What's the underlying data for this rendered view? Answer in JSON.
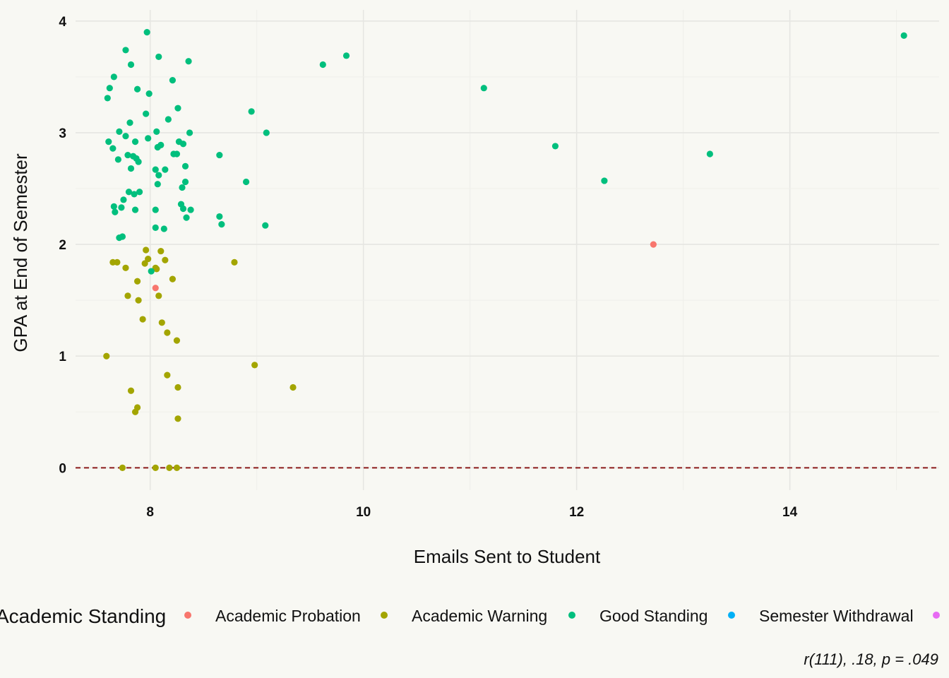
{
  "chart_data": {
    "type": "scatter",
    "xlabel": "Emails Sent to Student",
    "ylabel": "GPA at End of Semester",
    "xlim": [
      7.3,
      15.4
    ],
    "ylim": [
      -0.2,
      4.1
    ],
    "x_ticks": [
      8,
      10,
      12,
      14
    ],
    "y_ticks": [
      0,
      1,
      2,
      3,
      4
    ],
    "grid": true,
    "reference_line": {
      "y": 0,
      "style": "dashed",
      "color": "#8b1a1a"
    },
    "legend": {
      "title": "Academic Standing",
      "placement": "bottom",
      "entries": [
        {
          "name": "Academic Probation",
          "color": "#f8766d"
        },
        {
          "name": "Academic Warning",
          "color": "#a3a500"
        },
        {
          "name": "Good Standing",
          "color": "#00bf7d"
        },
        {
          "name": "Semester Withdrawal",
          "color": "#00b0f6"
        },
        {
          "name": "",
          "color": "#e76bf3"
        }
      ]
    },
    "caption": "r(111), .18, p = .049",
    "series": [
      {
        "name": "Academic Probation",
        "color": "#f8766d",
        "points": [
          [
            8.05,
            1.61
          ],
          [
            12.72,
            2.0
          ]
        ]
      },
      {
        "name": "Academic Warning",
        "color": "#a3a500",
        "points": [
          [
            7.59,
            1.0
          ],
          [
            7.65,
            1.84
          ],
          [
            7.69,
            1.84
          ],
          [
            7.74,
            0.0
          ],
          [
            7.77,
            1.79
          ],
          [
            7.79,
            1.54
          ],
          [
            7.82,
            0.69
          ],
          [
            7.86,
            0.5
          ],
          [
            7.88,
            0.54
          ],
          [
            7.88,
            1.67
          ],
          [
            7.89,
            1.5
          ],
          [
            7.93,
            1.33
          ],
          [
            7.95,
            1.83
          ],
          [
            7.96,
            1.95
          ],
          [
            7.98,
            1.87
          ],
          [
            8.05,
            1.79
          ],
          [
            8.05,
            0.0
          ],
          [
            8.06,
            1.78
          ],
          [
            8.08,
            1.54
          ],
          [
            8.1,
            1.94
          ],
          [
            8.11,
            1.3
          ],
          [
            8.14,
            1.86
          ],
          [
            8.16,
            1.21
          ],
          [
            8.16,
            0.83
          ],
          [
            8.18,
            0.0
          ],
          [
            8.21,
            1.69
          ],
          [
            8.25,
            1.14
          ],
          [
            8.25,
            0.0
          ],
          [
            8.26,
            0.72
          ],
          [
            8.26,
            0.44
          ],
          [
            8.79,
            1.84
          ],
          [
            8.98,
            0.92
          ],
          [
            9.34,
            0.72
          ]
        ]
      },
      {
        "name": "Good Standing",
        "color": "#00bf7d",
        "points": [
          [
            7.6,
            3.31
          ],
          [
            7.62,
            3.4
          ],
          [
            7.61,
            2.92
          ],
          [
            7.65,
            2.86
          ],
          [
            7.66,
            2.34
          ],
          [
            7.67,
            2.29
          ],
          [
            7.66,
            3.5
          ],
          [
            7.7,
            2.76
          ],
          [
            7.71,
            3.01
          ],
          [
            7.71,
            2.06
          ],
          [
            7.73,
            2.33
          ],
          [
            7.74,
            2.07
          ],
          [
            7.75,
            2.4
          ],
          [
            7.77,
            2.97
          ],
          [
            7.77,
            3.74
          ],
          [
            7.79,
            2.8
          ],
          [
            7.8,
            2.47
          ],
          [
            7.81,
            3.09
          ],
          [
            7.82,
            2.68
          ],
          [
            7.82,
            3.61
          ],
          [
            7.84,
            2.79
          ],
          [
            7.85,
            2.45
          ],
          [
            7.86,
            2.92
          ],
          [
            7.86,
            2.31
          ],
          [
            7.87,
            2.77
          ],
          [
            7.88,
            3.39
          ],
          [
            7.89,
            2.74
          ],
          [
            7.9,
            2.47
          ],
          [
            7.96,
            3.17
          ],
          [
            7.97,
            3.9
          ],
          [
            7.98,
            2.95
          ],
          [
            7.99,
            3.35
          ],
          [
            8.01,
            1.76
          ],
          [
            8.05,
            2.15
          ],
          [
            8.05,
            2.31
          ],
          [
            8.05,
            2.67
          ],
          [
            8.06,
            3.01
          ],
          [
            8.07,
            2.87
          ],
          [
            8.07,
            2.54
          ],
          [
            8.08,
            3.68
          ],
          [
            8.08,
            2.62
          ],
          [
            8.1,
            2.89
          ],
          [
            8.13,
            2.14
          ],
          [
            8.14,
            2.67
          ],
          [
            8.17,
            3.12
          ],
          [
            8.21,
            3.47
          ],
          [
            8.22,
            2.81
          ],
          [
            8.25,
            2.81
          ],
          [
            8.26,
            3.22
          ],
          [
            8.27,
            2.92
          ],
          [
            8.29,
            2.36
          ],
          [
            8.3,
            2.51
          ],
          [
            8.31,
            2.32
          ],
          [
            8.31,
            2.9
          ],
          [
            8.33,
            2.7
          ],
          [
            8.33,
            2.56
          ],
          [
            8.34,
            2.24
          ],
          [
            8.36,
            3.64
          ],
          [
            8.37,
            3.0
          ],
          [
            8.38,
            2.31
          ],
          [
            8.65,
            2.8
          ],
          [
            8.65,
            2.25
          ],
          [
            8.67,
            2.18
          ],
          [
            8.9,
            2.56
          ],
          [
            8.95,
            3.19
          ],
          [
            9.08,
            2.17
          ],
          [
            9.09,
            3.0
          ],
          [
            9.62,
            3.61
          ],
          [
            9.84,
            3.69
          ],
          [
            11.13,
            3.4
          ],
          [
            11.8,
            2.88
          ],
          [
            12.26,
            2.57
          ],
          [
            13.25,
            2.81
          ],
          [
            15.07,
            3.87
          ]
        ]
      }
    ]
  }
}
